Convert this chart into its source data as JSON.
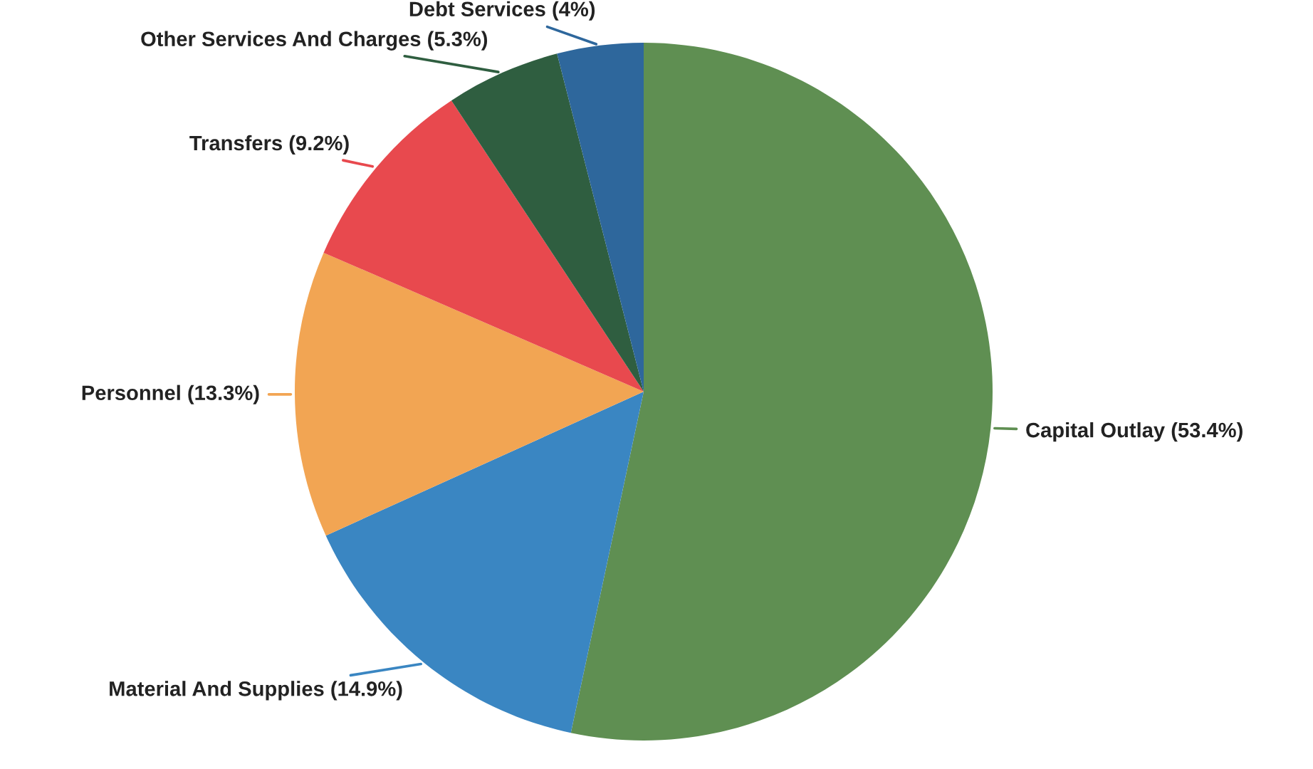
{
  "chart_data": {
    "type": "pie",
    "categories": [
      "Capital Outlay (53.4%)",
      "Material And Supplies (14.9%)",
      "Personnel (13.3%)",
      "Transfers (9.2%)",
      "Other Services And Charges (5.3%)",
      "Debt Services (4%)"
    ],
    "values": [
      53.4,
      14.9,
      13.3,
      9.2,
      5.3,
      4
    ],
    "colors": [
      "#5f8f52",
      "#3a86c2",
      "#f2a553",
      "#e8494e",
      "#2f5e40",
      "#2e679c"
    ]
  }
}
